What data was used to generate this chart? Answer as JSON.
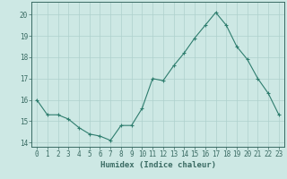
{
  "x": [
    0,
    1,
    2,
    3,
    4,
    5,
    6,
    7,
    8,
    9,
    10,
    11,
    12,
    13,
    14,
    15,
    16,
    17,
    18,
    19,
    20,
    21,
    22,
    23
  ],
  "y": [
    16.0,
    15.3,
    15.3,
    15.1,
    14.7,
    14.4,
    14.3,
    14.1,
    14.8,
    14.8,
    15.6,
    17.0,
    16.9,
    17.6,
    18.2,
    18.9,
    19.5,
    20.1,
    19.5,
    18.5,
    17.9,
    17.0,
    16.3,
    15.3
  ],
  "line_color": "#2e7d6e",
  "marker": "+",
  "marker_size": 3,
  "marker_lw": 0.8,
  "line_width": 0.8,
  "bg_color": "#cde8e4",
  "grid_color": "#aed0cc",
  "xlabel": "Humidex (Indice chaleur)",
  "xlim": [
    -0.5,
    23.5
  ],
  "ylim": [
    13.8,
    20.6
  ],
  "yticks": [
    14,
    15,
    16,
    17,
    18,
    19,
    20
  ],
  "xticks": [
    0,
    1,
    2,
    3,
    4,
    5,
    6,
    7,
    8,
    9,
    10,
    11,
    12,
    13,
    14,
    15,
    16,
    17,
    18,
    19,
    20,
    21,
    22,
    23
  ],
  "tick_fontsize": 5.5,
  "xlabel_fontsize": 6.5,
  "spine_color": "#3a6b63"
}
